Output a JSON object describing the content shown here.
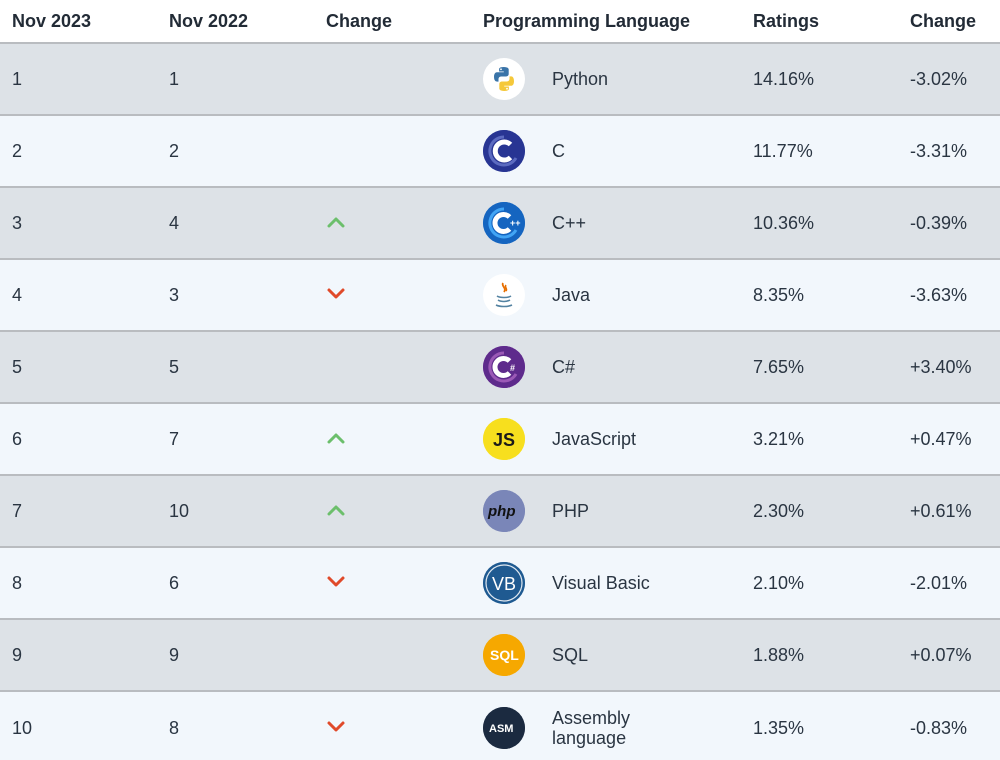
{
  "header": {
    "col1": "Nov 2023",
    "col2": "Nov 2022",
    "col3": "Change",
    "col4": "Programming Language",
    "col5": "Ratings",
    "col6": "Change"
  },
  "rows": [
    {
      "rank": "1",
      "prev": "1",
      "trend": "none",
      "lang": "Python",
      "rating": "14.16%",
      "change": "-3.02%",
      "icon": "python-icon"
    },
    {
      "rank": "2",
      "prev": "2",
      "trend": "none",
      "lang": "C",
      "rating": "11.77%",
      "change": "-3.31%",
      "icon": "c-icon"
    },
    {
      "rank": "3",
      "prev": "4",
      "trend": "up",
      "lang": "C++",
      "rating": "10.36%",
      "change": "-0.39%",
      "icon": "cpp-icon"
    },
    {
      "rank": "4",
      "prev": "3",
      "trend": "down",
      "lang": "Java",
      "rating": "8.35%",
      "change": "-3.63%",
      "icon": "java-icon"
    },
    {
      "rank": "5",
      "prev": "5",
      "trend": "none",
      "lang": "C#",
      "rating": "7.65%",
      "change": "+3.40%",
      "icon": "csharp-icon"
    },
    {
      "rank": "6",
      "prev": "7",
      "trend": "up",
      "lang": "JavaScript",
      "rating": "3.21%",
      "change": "+0.47%",
      "icon": "javascript-icon"
    },
    {
      "rank": "7",
      "prev": "10",
      "trend": "up",
      "lang": "PHP",
      "rating": "2.30%",
      "change": "+0.61%",
      "icon": "php-icon"
    },
    {
      "rank": "8",
      "prev": "6",
      "trend": "down",
      "lang": "Visual Basic",
      "rating": "2.10%",
      "change": "-2.01%",
      "icon": "visual-basic-icon"
    },
    {
      "rank": "9",
      "prev": "9",
      "trend": "none",
      "lang": "SQL",
      "rating": "1.88%",
      "change": "+0.07%",
      "icon": "sql-icon"
    },
    {
      "rank": "10",
      "prev": "8",
      "trend": "down",
      "lang": "Assembly language",
      "rating": "1.35%",
      "change": "-0.83%",
      "icon": "assembly-icon"
    }
  ],
  "colors": {
    "up": "#6cbf6c",
    "down": "#e04a2a"
  }
}
